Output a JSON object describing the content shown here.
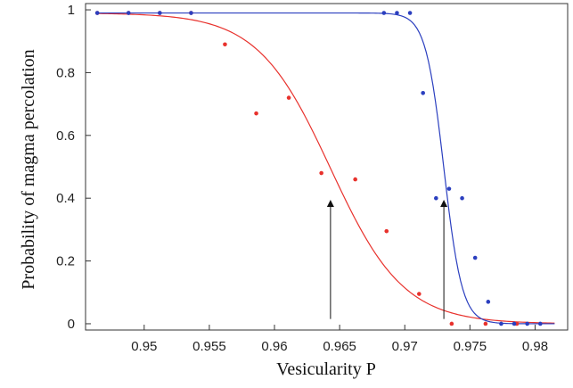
{
  "chart_data": {
    "type": "scatter",
    "xlabel": "Vesicularity P",
    "ylabel": "Probability of magma percolation",
    "xlim": [
      0.9455,
      0.9825
    ],
    "ylim": [
      -0.02,
      1.02
    ],
    "x_ticks": [
      0.95,
      0.955,
      0.96,
      0.965,
      0.97,
      0.975,
      0.98
    ],
    "x_tick_labels": [
      "0.95",
      "0.955",
      "0.96",
      "0.965",
      "0.97",
      "0.975",
      "0.98"
    ],
    "y_ticks": [
      0,
      0.2,
      0.4,
      0.6,
      0.8,
      1
    ],
    "y_tick_labels": [
      "0",
      "0.2",
      "0.4",
      "0.6",
      "0.8",
      "1"
    ],
    "grid": false,
    "series": [
      {
        "color": "#e8322d",
        "points": [
          [
            0.9464,
            0.99
          ],
          [
            0.9488,
            0.99
          ],
          [
            0.9512,
            0.99
          ],
          [
            0.9536,
            0.99
          ],
          [
            0.9562,
            0.89
          ],
          [
            0.9586,
            0.67
          ],
          [
            0.9611,
            0.72
          ],
          [
            0.9636,
            0.48
          ],
          [
            0.9662,
            0.46
          ],
          [
            0.9686,
            0.295
          ],
          [
            0.9711,
            0.095
          ],
          [
            0.9736,
            0.0
          ],
          [
            0.9762,
            0.0
          ],
          [
            0.9786,
            0.0
          ]
        ],
        "fit": {
          "model": "logistic",
          "midpoint": 0.9643,
          "scale": 0.0028,
          "top": 0.99,
          "x_range": [
            0.9463,
            0.9815
          ]
        }
      },
      {
        "color": "#2b3fbf",
        "points": [
          [
            0.9464,
            0.99
          ],
          [
            0.9488,
            0.99
          ],
          [
            0.9512,
            0.99
          ],
          [
            0.9536,
            0.99
          ],
          [
            0.9684,
            0.99
          ],
          [
            0.9694,
            0.99
          ],
          [
            0.9704,
            0.99
          ],
          [
            0.9714,
            0.735
          ],
          [
            0.9724,
            0.4
          ],
          [
            0.9734,
            0.43
          ],
          [
            0.9744,
            0.4
          ],
          [
            0.9754,
            0.21
          ],
          [
            0.9764,
            0.07
          ],
          [
            0.9774,
            0.0
          ],
          [
            0.9784,
            0.0
          ],
          [
            0.9794,
            0.0
          ],
          [
            0.9804,
            0.0
          ]
        ],
        "fit": {
          "model": "logistic",
          "midpoint": 0.973,
          "scale": 0.0007,
          "top": 0.99,
          "x_range": [
            0.9463,
            0.9815
          ]
        }
      }
    ],
    "annotations": [
      {
        "type": "arrow",
        "x": 0.9643,
        "y_from": 0.015,
        "y_to": 0.395
      },
      {
        "type": "arrow",
        "x": 0.973,
        "y_from": 0.015,
        "y_to": 0.395
      }
    ]
  }
}
